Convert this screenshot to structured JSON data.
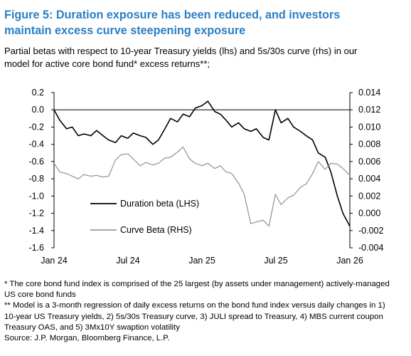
{
  "figure": {
    "title": "Figure 5: Duration exposure has been reduced, and investors maintain excess curve steepening exposure",
    "subtitle": "Partial betas with respect to 10-year Treasury yields (lhs) and 5s/30s curve (rhs) in our model for active core bond fund* excess returns**;",
    "notes": [
      "* The core bond fund index is comprised of the 25 largest (by assets under management) actively-managed US core bond funds",
      "** Model is a 3-month regression of daily excess returns on the bond fund index versus daily changes in 1) 10-year US Treasury yields, 2) 5s/30s Treasury curve, 3) JULI spread to Treasury, 4) MBS current coupon Treasury OAS, and 5) 3Mx10Y swaption volatility",
      "Source: J.P. Morgan, Bloomberg Finance, L.P."
    ]
  },
  "chart_data": {
    "type": "line",
    "x_axis": {
      "ticks": [
        "Jan 24",
        "Jul 24",
        "Jan 25",
        "Jul 25",
        "Jan 26"
      ]
    },
    "y_left": {
      "ylim": [
        -1.6,
        0.2
      ],
      "ticks": [
        "0.2",
        "0.0",
        "-0.2",
        "-0.4",
        "-0.6",
        "-0.8",
        "-1.0",
        "-1.2",
        "-1.4",
        "-1.6"
      ]
    },
    "y_right": {
      "ylim": [
        -0.004,
        0.014
      ],
      "ticks": [
        "0.014",
        "0.012",
        "0.010",
        "0.008",
        "0.006",
        "0.004",
        "0.002",
        "0.000",
        "-0.002",
        "-0.004"
      ]
    },
    "series": [
      {
        "name": "Duration beta (LHS)",
        "axis": "left",
        "color": "#000000",
        "x": [
          "2024-01-01",
          "2024-01-15",
          "2024-02-01",
          "2024-02-15",
          "2024-03-01",
          "2024-03-15",
          "2024-04-01",
          "2024-04-15",
          "2024-05-01",
          "2024-05-15",
          "2024-06-01",
          "2024-06-15",
          "2024-07-01",
          "2024-07-15",
          "2024-08-01",
          "2024-08-15",
          "2024-09-01",
          "2024-09-15",
          "2024-10-01",
          "2024-10-15",
          "2024-11-01",
          "2024-11-15",
          "2024-12-01",
          "2024-12-15",
          "2025-01-01",
          "2025-01-15",
          "2025-02-01",
          "2025-02-15",
          "2025-03-01",
          "2025-03-15",
          "2025-04-01",
          "2025-04-15",
          "2025-05-01",
          "2025-05-15",
          "2025-06-01",
          "2025-06-15",
          "2025-07-01",
          "2025-07-15",
          "2025-08-01",
          "2025-08-15",
          "2025-09-01",
          "2025-09-15",
          "2025-10-01",
          "2025-10-15",
          "2025-11-01",
          "2025-11-15",
          "2025-12-01",
          "2025-12-15",
          "2026-01-01"
        ],
        "values": [
          0.0,
          -0.12,
          -0.22,
          -0.2,
          -0.3,
          -0.28,
          -0.3,
          -0.24,
          -0.3,
          -0.35,
          -0.38,
          -0.3,
          -0.33,
          -0.27,
          -0.3,
          -0.32,
          -0.4,
          -0.35,
          -0.22,
          -0.1,
          -0.14,
          -0.05,
          -0.08,
          0.02,
          0.05,
          0.1,
          -0.02,
          -0.05,
          -0.12,
          -0.2,
          -0.15,
          -0.22,
          -0.25,
          -0.22,
          -0.32,
          -0.35,
          0.0,
          -0.15,
          -0.1,
          -0.2,
          -0.25,
          -0.3,
          -0.35,
          -0.5,
          -0.55,
          -0.72,
          -1.0,
          -1.2,
          -1.35
        ]
      },
      {
        "name": "Curve Beta (RHS)",
        "axis": "right",
        "color": "#999999",
        "x": [
          "2024-01-01",
          "2024-01-15",
          "2024-02-01",
          "2024-02-15",
          "2024-03-01",
          "2024-03-15",
          "2024-04-01",
          "2024-04-15",
          "2024-05-01",
          "2024-05-15",
          "2024-06-01",
          "2024-06-15",
          "2024-07-01",
          "2024-07-15",
          "2024-08-01",
          "2024-08-15",
          "2024-09-01",
          "2024-09-15",
          "2024-10-01",
          "2024-10-15",
          "2024-11-01",
          "2024-11-15",
          "2024-12-01",
          "2024-12-15",
          "2025-01-01",
          "2025-01-15",
          "2025-02-01",
          "2025-02-15",
          "2025-03-01",
          "2025-03-15",
          "2025-04-01",
          "2025-04-15",
          "2025-05-01",
          "2025-05-15",
          "2025-06-01",
          "2025-06-15",
          "2025-07-01",
          "2025-07-15",
          "2025-08-01",
          "2025-08-15",
          "2025-09-01",
          "2025-09-15",
          "2025-10-01",
          "2025-10-15",
          "2025-11-01",
          "2025-11-15",
          "2025-12-01",
          "2025-12-15",
          "2026-01-01"
        ],
        "values": [
          0.0058,
          0.0048,
          0.0046,
          0.0043,
          0.004,
          0.0045,
          0.0043,
          0.0044,
          0.0042,
          0.0043,
          0.0062,
          0.0068,
          0.0069,
          0.0063,
          0.0055,
          0.0059,
          0.0056,
          0.0058,
          0.0064,
          0.0065,
          0.0071,
          0.0077,
          0.0063,
          0.0058,
          0.0055,
          0.0058,
          0.0052,
          0.0055,
          0.0048,
          0.0046,
          0.0035,
          0.0022,
          -0.0012,
          -0.001,
          -0.0008,
          -0.0015,
          0.0022,
          0.001,
          0.0018,
          0.0021,
          0.003,
          0.0034,
          0.0046,
          0.006,
          0.0051,
          0.0058,
          0.0057,
          0.0052,
          0.0044
        ]
      }
    ],
    "legend": {
      "placement": "lower-left"
    }
  }
}
